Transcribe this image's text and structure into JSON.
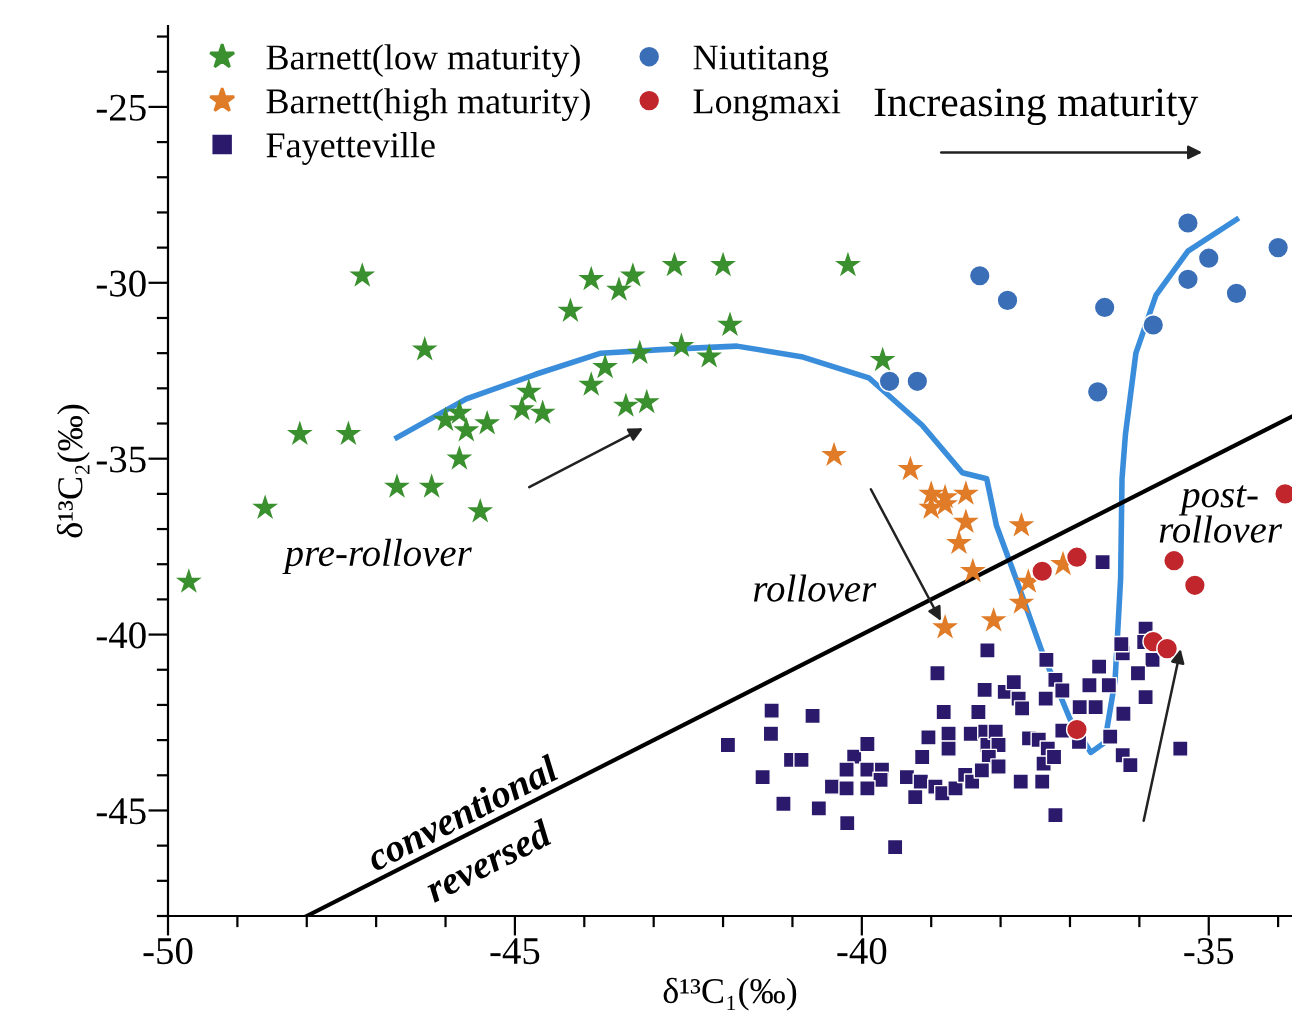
{
  "chart_data": {
    "type": "scatter",
    "xlabel": "δ¹³C₁(‰)",
    "ylabel": "δ¹³C₂(‰)",
    "xlim": [
      -50,
      -33.8
    ],
    "ylim": [
      -48,
      -22.7
    ],
    "xticks": [
      -50,
      {
        "value": -49,
        "label": null
      },
      {
        "value": -48,
        "label": null
      },
      {
        "value": -47,
        "label": null
      },
      {
        "value": -46,
        "label": null
      },
      -45,
      {
        "value": -44,
        "label": null
      },
      {
        "value": -43,
        "label": null
      },
      {
        "value": -42,
        "label": null
      },
      {
        "value": -41,
        "label": null
      },
      -40,
      {
        "value": -39,
        "label": null
      },
      {
        "value": -38,
        "label": null
      },
      {
        "value": -37,
        "label": null
      },
      {
        "value": -36,
        "label": null
      },
      -35,
      {
        "value": -34,
        "label": null
      }
    ],
    "yticks": [
      {
        "value": -48,
        "label": null
      },
      {
        "value": -47,
        "label": null
      },
      {
        "value": -46,
        "label": null
      },
      -45,
      {
        "value": -44,
        "label": null
      },
      {
        "value": -43,
        "label": null
      },
      {
        "value": -42,
        "label": null
      },
      {
        "value": -41,
        "label": null
      },
      -40,
      {
        "value": -39,
        "label": null
      },
      {
        "value": -38,
        "label": null
      },
      {
        "value": -37,
        "label": null
      },
      {
        "value": -36,
        "label": null
      },
      -35,
      {
        "value": -34,
        "label": null
      },
      {
        "value": -33,
        "label": null
      },
      {
        "value": -32,
        "label": null
      },
      {
        "value": -31,
        "label": null
      },
      -30,
      {
        "value": -29,
        "label": null
      },
      {
        "value": -28,
        "label": null
      },
      {
        "value": -27,
        "label": null
      },
      {
        "value": -26,
        "label": null
      },
      -25,
      {
        "value": -24,
        "label": null
      },
      {
        "value": -23,
        "label": null
      }
    ],
    "grid": false,
    "legend": "top left",
    "annotations": [
      "Increasing maturity",
      "pre-rollover",
      "rollover",
      "post-\nrollover",
      "conventional",
      "reversed"
    ],
    "series": [
      {
        "name": "Barnett(low maturity)",
        "color": "#3a8f2e",
        "marker": "star",
        "x": [
          -49.7,
          -48.6,
          -48.1,
          -47.4,
          -47.2,
          -46.3,
          -46.7,
          -46.2,
          -45.5,
          -45.8,
          -46.0,
          -45.8,
          -45.7,
          -45.4,
          -44.9,
          -44.8,
          -44.6,
          -44.2,
          -43.9,
          -43.9,
          -43.7,
          -43.5,
          -43.3,
          -43.4,
          -43.1,
          -43.2,
          -42.7,
          -42.0,
          -40.2,
          -41.9,
          -42.6,
          -42.2,
          -39.7
        ],
        "values": [
          -38.5,
          -36.4,
          -34.3,
          -34.3,
          -29.8,
          -31.9,
          -35.8,
          -35.8,
          -36.5,
          -35.0,
          -33.9,
          -33.7,
          -34.2,
          -34.0,
          -33.6,
          -33.1,
          -33.7,
          -30.8,
          -29.9,
          -32.9,
          -32.4,
          -30.2,
          -29.8,
          -33.5,
          -33.4,
          -32.0,
          -29.5,
          -29.5,
          -29.5,
          -31.2,
          -31.8,
          -32.1,
          -32.2
        ]
      },
      {
        "name": "Barnett(high maturity)",
        "color": "#e07b28",
        "marker": "star",
        "x": [
          -40.4,
          -39.3,
          -39.0,
          -38.8,
          -38.5,
          -38.8,
          -38.5,
          -38.6,
          -38.4,
          -37.7,
          -37.6,
          -37.7,
          -37.1,
          -38.1,
          -38.8,
          -39.0
        ],
        "values": [
          -34.9,
          -35.3,
          -36.0,
          -36.1,
          -36.0,
          -36.3,
          -36.8,
          -37.4,
          -38.2,
          -36.9,
          -38.5,
          -39.1,
          -38.0,
          -39.6,
          -39.8,
          -36.4
        ]
      },
      {
        "name": "Fayetteville",
        "color": "#2b1a6b",
        "marker": "square",
        "x": [
          -36.53,
          -38.19,
          -38.91,
          -38.23,
          -38.82,
          -38.32,
          -37.94,
          -37.81,
          -37.74,
          -37.69,
          -37.34,
          -37.21,
          -37.11,
          -37.35,
          -36.72,
          -36.58,
          -36.44,
          -36.63,
          -36.86,
          -36.24,
          -36.26,
          -35.91,
          -35.93,
          -35.81,
          -36.02,
          -35.91,
          -36.23,
          -36.42,
          -35.41,
          -36.24,
          -36.13,
          -41.3,
          -40.71,
          -41.31,
          -41.93,
          -41.02,
          -40.87,
          -41.43,
          -41.13,
          -40.62,
          -40.21,
          -39.52,
          -40.43,
          -40.22,
          -40.11,
          -39.92,
          -40.22,
          -39.92,
          -39.71,
          -39.73,
          -39.92,
          -39.35,
          -39.23,
          -39.13,
          -39.04,
          -38.75,
          -38.75,
          -39.15,
          -38.94,
          -38.84,
          -38.65,
          -38.51,
          -38.41,
          -38.43,
          -38.22,
          -38.19,
          -38.07,
          -38.03,
          -38.17,
          -38.03,
          -38.27,
          -37.71,
          -37.59,
          -37.45,
          -37.32,
          -37.38,
          -37.4,
          -37.21,
          -37.11,
          -36.87,
          -37.23
        ],
        "values": [
          -37.94,
          -40.45,
          -41.1,
          -41.57,
          -42.2,
          -42.2,
          -41.63,
          -41.35,
          -41.82,
          -42.1,
          -40.72,
          -41.29,
          -41.59,
          -41.82,
          -41.44,
          -40.91,
          -41.44,
          -42.06,
          -42.06,
          -40.53,
          -40.27,
          -39.83,
          -40.21,
          -40.72,
          -41.1,
          -41.78,
          -42.25,
          -42.9,
          -43.24,
          -43.43,
          -43.71,
          -42.16,
          -42.31,
          -42.82,
          -43.14,
          -43.56,
          -43.56,
          -44.05,
          -44.81,
          -44.94,
          -45.36,
          -46.04,
          -44.32,
          -44.37,
          -43.47,
          -43.11,
          -43.84,
          -43.84,
          -43.84,
          -44.13,
          -44.37,
          -44.05,
          -44.62,
          -43.48,
          -42.92,
          -42.82,
          -43.24,
          -44.18,
          -44.32,
          -44.51,
          -44.37,
          -43.99,
          -44.18,
          -42.82,
          -42.76,
          -43.14,
          -42.76,
          -43.14,
          -43.48,
          -43.75,
          -43.86,
          -44.18,
          -42.95,
          -42.99,
          -43.24,
          -43.67,
          -44.18,
          -45.13,
          -42.73,
          -43.05,
          -43.48
        ]
      },
      {
        "name": "Niutitang",
        "color": "#3a6fb7",
        "marker": "circle",
        "x": [
          -38.3,
          -37.9,
          -39.6,
          -39.2,
          -36.5,
          -36.6,
          -35.8,
          -35.3,
          -35.0,
          -35.3,
          -34.6,
          -34.0
        ],
        "values": [
          -29.8,
          -30.5,
          -32.8,
          -32.8,
          -30.7,
          -33.1,
          -31.2,
          -28.3,
          -29.3,
          -29.9,
          -30.3,
          -29.0
        ]
      },
      {
        "name": "Longmaxi",
        "color": "#c0262b",
        "marker": "circle",
        "x": [
          -33.9,
          -37.4,
          -36.9,
          -35.5,
          -35.2,
          -35.8,
          -35.6,
          -36.9
        ],
        "values": [
          -36.0,
          -38.2,
          -37.8,
          -37.9,
          -38.6,
          -40.2,
          -40.4,
          -42.7
        ]
      },
      {
        "type": "line",
        "color": "#3a8ddb",
        "marker": "none",
        "line_style": "solid",
        "x": [
          -46.7,
          -45.7,
          -44.7,
          -43.76,
          -42.9,
          -41.8,
          -40.87,
          -39.9,
          -39.13,
          -38.55,
          -38.2,
          -38.06,
          -37.78,
          -37.4,
          -37.0,
          -36.7,
          -36.5,
          -36.35,
          -36.27,
          -36.25,
          -36.2,
          -36.05,
          -35.76,
          -35.3,
          -34.6
        ],
        "values": [
          -34.4,
          -33.3,
          -32.6,
          -32.0,
          -31.9,
          -31.8,
          -32.1,
          -32.7,
          -34.05,
          -35.4,
          -35.57,
          -36.9,
          -38.4,
          -40.5,
          -42.4,
          -43.35,
          -43.07,
          -41.3,
          -38.4,
          -35.57,
          -34.3,
          -32.0,
          -30.35,
          -29.1,
          -28.2
        ]
      },
      {
        "type": "line",
        "color": "#000000",
        "marker": "none",
        "line_style": "solid",
        "x": [
          -48,
          -33.8
        ],
        "values": [
          -48,
          -33.8
        ]
      }
    ]
  }
}
